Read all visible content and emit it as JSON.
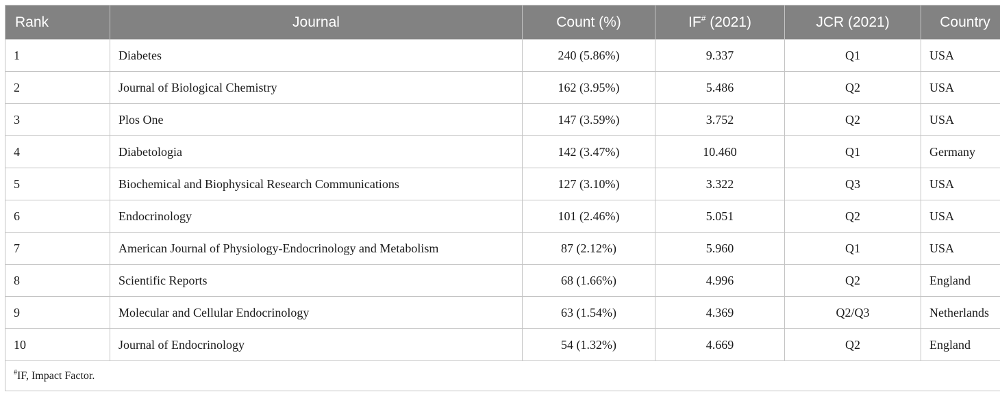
{
  "table": {
    "headers": {
      "rank": "Rank",
      "journal": "Journal",
      "count": "Count (%)",
      "if_prefix": "IF",
      "if_mark": "#",
      "if_suffix": " (2021)",
      "jcr": "JCR (2021)",
      "country": "Country"
    },
    "rows": [
      {
        "rank": "1",
        "journal": "Diabetes",
        "count": "240 (5.86%)",
        "if": "9.337",
        "jcr": "Q1",
        "country": "USA"
      },
      {
        "rank": "2",
        "journal": "Journal of Biological Chemistry",
        "count": "162 (3.95%)",
        "if": "5.486",
        "jcr": "Q2",
        "country": "USA"
      },
      {
        "rank": "3",
        "journal": "Plos One",
        "count": "147 (3.59%)",
        "if": "3.752",
        "jcr": "Q2",
        "country": "USA"
      },
      {
        "rank": "4",
        "journal": "Diabetologia",
        "count": "142 (3.47%)",
        "if": "10.460",
        "jcr": "Q1",
        "country": "Germany"
      },
      {
        "rank": "5",
        "journal": "Biochemical and Biophysical Research Communications",
        "count": "127 (3.10%)",
        "if": "3.322",
        "jcr": "Q3",
        "country": "USA"
      },
      {
        "rank": "6",
        "journal": "Endocrinology",
        "count": "101 (2.46%)",
        "if": "5.051",
        "jcr": "Q2",
        "country": "USA"
      },
      {
        "rank": "7",
        "journal": "American Journal of Physiology-Endocrinology and Metabolism",
        "count": "87 (2.12%)",
        "if": "5.960",
        "jcr": "Q1",
        "country": "USA"
      },
      {
        "rank": "8",
        "journal": "Scientific Reports",
        "count": "68 (1.66%)",
        "if": "4.996",
        "jcr": "Q2",
        "country": "England"
      },
      {
        "rank": "9",
        "journal": "Molecular and Cellular Endocrinology",
        "count": "63 (1.54%)",
        "if": "4.369",
        "jcr": "Q2/Q3",
        "country": "Netherlands"
      },
      {
        "rank": "10",
        "journal": "Journal of Endocrinology",
        "count": "54 (1.32%)",
        "if": "4.669",
        "jcr": "Q2",
        "country": "England"
      }
    ],
    "footnote": {
      "mark": "#",
      "text": "IF, Impact Factor."
    }
  },
  "colors": {
    "header_bg": "#828282",
    "header_text": "#ffffff",
    "border": "#c4c4c4"
  }
}
